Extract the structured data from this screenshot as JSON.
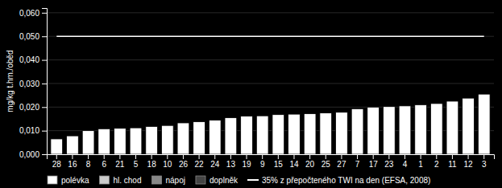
{
  "chart_data": {
    "type": "bar",
    "categories": [
      "28",
      "16",
      "8",
      "6",
      "21",
      "5",
      "18",
      "10",
      "26",
      "22",
      "24",
      "13",
      "19",
      "9",
      "15",
      "14",
      "20",
      "25",
      "27",
      "7",
      "17",
      "23",
      "4",
      "1",
      "2",
      "11",
      "12",
      "3"
    ],
    "series": [
      {
        "name": "polévka",
        "color": "#ffffff",
        "values": [
          0.0065,
          0.0078,
          0.01,
          0.0108,
          0.011,
          0.0112,
          0.0118,
          0.0122,
          0.0133,
          0.0138,
          0.0145,
          0.0155,
          0.0162,
          0.0163,
          0.0168,
          0.017,
          0.0172,
          0.0175,
          0.0178,
          0.0193,
          0.02,
          0.0202,
          0.0205,
          0.021,
          0.0215,
          0.0225,
          0.0238,
          0.0255
        ]
      },
      {
        "name": "hl. chod",
        "color": "#cccccc",
        "values": [
          null,
          null,
          null,
          null,
          null,
          null,
          null,
          null,
          null,
          null,
          null,
          null,
          null,
          null,
          null,
          null,
          null,
          null,
          null,
          null,
          null,
          null,
          null,
          null,
          null,
          null,
          null,
          null
        ]
      },
      {
        "name": "nápoj",
        "color": "#888888",
        "values": [
          null,
          null,
          null,
          null,
          null,
          null,
          null,
          null,
          null,
          null,
          null,
          null,
          null,
          null,
          null,
          null,
          null,
          null,
          null,
          null,
          null,
          null,
          null,
          null,
          null,
          null,
          null,
          null
        ]
      },
      {
        "name": "doplněk",
        "color": "#444444",
        "values": [
          null,
          null,
          null,
          null,
          null,
          null,
          null,
          null,
          null,
          null,
          null,
          null,
          null,
          null,
          null,
          null,
          null,
          null,
          null,
          null,
          null,
          null,
          null,
          null,
          null,
          null,
          null,
          null
        ]
      },
      {
        "name": "35% z přepočteného TWI na den (EFSA, 2008)",
        "type": "line",
        "color": "#ffffff",
        "values": [
          0.05,
          0.05,
          0.05,
          0.05,
          0.05,
          0.05,
          0.05,
          0.05,
          0.05,
          0.05,
          0.05,
          0.05,
          0.05,
          0.05,
          0.05,
          0.05,
          0.05,
          0.05,
          0.05,
          0.05,
          0.05,
          0.05,
          0.05,
          0.05,
          0.05,
          0.05,
          0.05,
          0.05
        ]
      }
    ],
    "ylabel": "mg/kg t.hm./oběd",
    "ylim": [
      0,
      0.062
    ],
    "yticks": [
      {
        "value": 0.0,
        "label": "0,000"
      },
      {
        "value": 0.01,
        "label": "0,010"
      },
      {
        "value": 0.02,
        "label": "0,020"
      },
      {
        "value": 0.03,
        "label": "0,030"
      },
      {
        "value": 0.04,
        "label": "0,040"
      },
      {
        "value": 0.05,
        "label": "0,050"
      },
      {
        "value": 0.06,
        "label": "0,060"
      }
    ],
    "grid": true,
    "legend": "bottom"
  }
}
